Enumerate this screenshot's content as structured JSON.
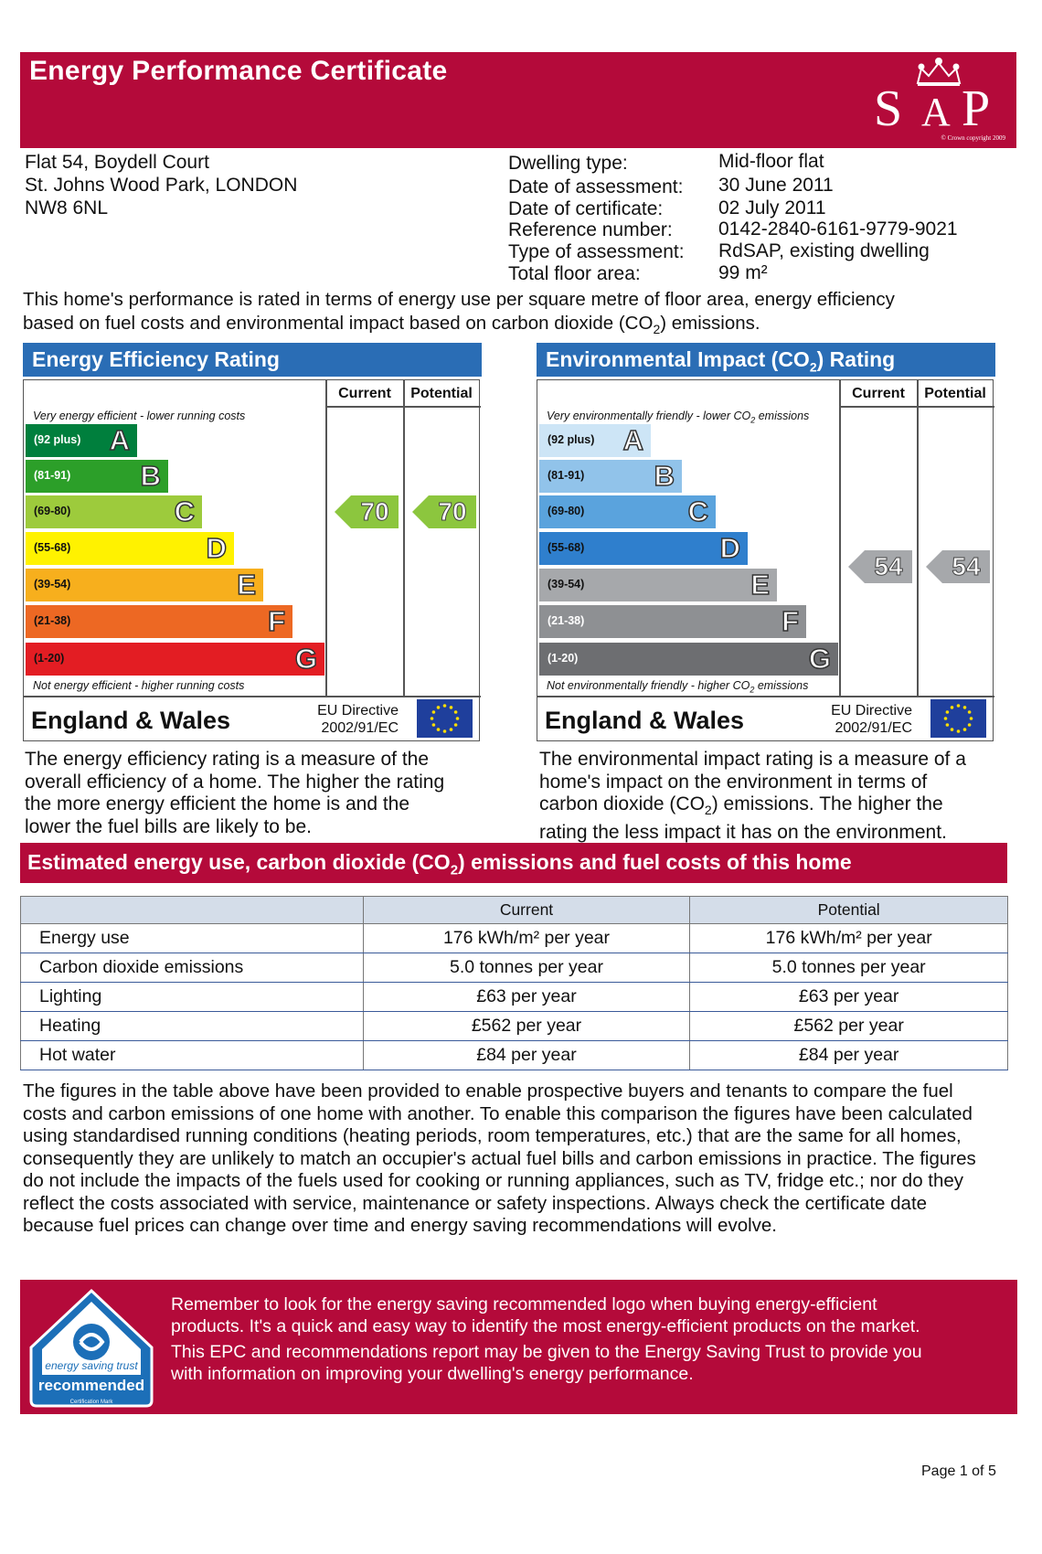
{
  "header": {
    "title": "Energy Performance Certificate",
    "logo_text": "SAP",
    "logo_copyright": "© Crown copyright 2009"
  },
  "address": [
    "Flat 54, Boydell Court",
    "St. Johns Wood Park, LONDON",
    "NW8 6NL"
  ],
  "details": [
    {
      "label": "Dwelling type:",
      "value": "Mid-floor flat"
    },
    {
      "label": "Date of assessment:",
      "value": "30 June 2011"
    },
    {
      "label": "Date of certificate:",
      "value": "02 July 2011"
    },
    {
      "label": "Reference number:",
      "value": "0142-2840-6161-9779-9021"
    },
    {
      "label": "Type of assessment:",
      "value": "RdSAP, existing dwelling"
    },
    {
      "label": "Total floor area:",
      "value": "99 m²"
    }
  ],
  "intro": {
    "line1": "This home's performance is rated in terms of energy use per square metre of floor area, energy efficiency",
    "line2_pre": "based on fuel costs and environmental impact based on carbon dioxide (CO",
    "line2_sub": "2",
    "line2_post": ") emissions."
  },
  "energy_panel": {
    "title": "Energy Efficiency Rating",
    "col_current": "Current",
    "col_potential": "Potential",
    "top_note": "Very energy efficient - lower running costs",
    "bottom_note": "Not energy efficient - higher running costs",
    "bands": [
      {
        "range": "(92 plus)",
        "letter": "A",
        "color": "#007f3d"
      },
      {
        "range": "(81-91)",
        "letter": "B",
        "color": "#2c9f29"
      },
      {
        "range": "(69-80)",
        "letter": "C",
        "color": "#9dcb3c"
      },
      {
        "range": "(55-68)",
        "letter": "D",
        "color": "#fff200"
      },
      {
        "range": "(39-54)",
        "letter": "E",
        "color": "#f7af1d"
      },
      {
        "range": "(21-38)",
        "letter": "F",
        "color": "#ed6823"
      },
      {
        "range": "(1-20)",
        "letter": "G",
        "color": "#e31d23"
      }
    ],
    "current": "70",
    "potential": "70",
    "arrow_color": "#8cc63e",
    "country": "England & Wales",
    "eu_line1": "EU Directive",
    "eu_line2": "2002/91/EC",
    "explanation": [
      "The energy efficiency rating is a measure of the",
      "overall efficiency of a home. The higher the rating",
      "the more energy efficient the home is and the",
      "lower the fuel bills are likely to be."
    ]
  },
  "env_panel": {
    "title_pre": "Environmental Impact (CO",
    "title_sub": "2",
    "title_post": ") Rating",
    "col_current": "Current",
    "col_potential": "Potential",
    "top_note_pre": "Very environmentally friendly - lower CO",
    "top_note_sub": "2",
    "top_note_post": " emissions",
    "bottom_note_pre": "Not environmentally friendly - higher CO",
    "bottom_note_sub": "2",
    "bottom_note_post": " emissions",
    "bands": [
      {
        "range": "(92 plus)",
        "letter": "A",
        "color": "#cde5f6"
      },
      {
        "range": "(81-91)",
        "letter": "B",
        "color": "#91c3ea"
      },
      {
        "range": "(69-80)",
        "letter": "C",
        "color": "#5aa3dd"
      },
      {
        "range": "(55-68)",
        "letter": "D",
        "color": "#2f7fcd"
      },
      {
        "range": "(39-54)",
        "letter": "E",
        "color": "#a6a8ab"
      },
      {
        "range": "(21-38)",
        "letter": "F",
        "color": "#8e9093"
      },
      {
        "range": "(1-20)",
        "letter": "G",
        "color": "#6d6e71"
      }
    ],
    "current": "54",
    "potential": "54",
    "arrow_color": "#a6a8ab",
    "country": "England & Wales",
    "eu_line1": "EU Directive",
    "eu_line2": "2002/91/EC",
    "explanation": [
      "The environmental impact rating is a measure of a",
      "home's impact on the environment in terms of",
      "carbon dioxide (CO|2|) emissions. The higher the",
      "rating the less impact it has on the environment."
    ]
  },
  "estimated": {
    "title_pre": "Estimated energy use, carbon dioxide (CO",
    "title_sub": "2",
    "title_post": ") emissions and fuel costs of this home",
    "col_current": "Current",
    "col_potential": "Potential",
    "rows": [
      {
        "label": "Energy use",
        "current": "176 kWh/m² per year",
        "potential": "176 kWh/m² per year"
      },
      {
        "label": "Carbon dioxide emissions",
        "current": "5.0 tonnes per year",
        "potential": "5.0 tonnes per year"
      },
      {
        "label": "Lighting",
        "current": "£63 per year",
        "potential": "£63 per year"
      },
      {
        "label": "Heating",
        "current": "£562 per year",
        "potential": "£562 per year"
      },
      {
        "label": "Hot water",
        "current": "£84 per year",
        "potential": "£84 per year"
      }
    ]
  },
  "paragraph": [
    "The figures in the table above have been provided to enable prospective buyers and tenants to compare the fuel",
    "costs and carbon emissions of one home with another. To enable this comparison the figures have been calculated",
    "using standardised running conditions (heating periods, room temperatures, etc.) that are the same for all homes,",
    "consequently they are unlikely to match an occupier's actual fuel bills and carbon emissions in practice. The figures",
    "do not include the impacts of the fuels used for cooking or running appliances, such as TV, fridge etc.; nor do they",
    "reflect the costs associated with service, maintenance or safety inspections. Always check the certificate date",
    "because fuel prices can change over time and energy saving recommendations will evolve."
  ],
  "footer": {
    "lines": [
      "Remember to look for the energy saving recommended logo when buying energy-efficient",
      "products. It's a quick and easy way to identify the most energy-efficient products on the market.",
      "This EPC and recommendations report may be given to the Energy Saving Trust to provide you",
      "with information on improving your dwelling's energy performance."
    ],
    "logo_arc": "energy saving trust",
    "logo_label": "recommended",
    "logo_small": "Certification Mark"
  },
  "page_number": "Page 1 of 5",
  "colors": {
    "brand": "#b40a3a",
    "panel_blue": "#2a6db5"
  }
}
